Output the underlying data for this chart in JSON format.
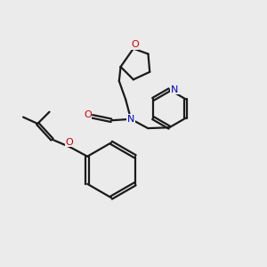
{
  "bg_color": "#ebebeb",
  "bond_color": "#1a1a1a",
  "o_color": "#cc0000",
  "n_color": "#0000cc",
  "lw": 1.6,
  "xlim": [
    0,
    10
  ],
  "ylim": [
    0,
    10
  ]
}
